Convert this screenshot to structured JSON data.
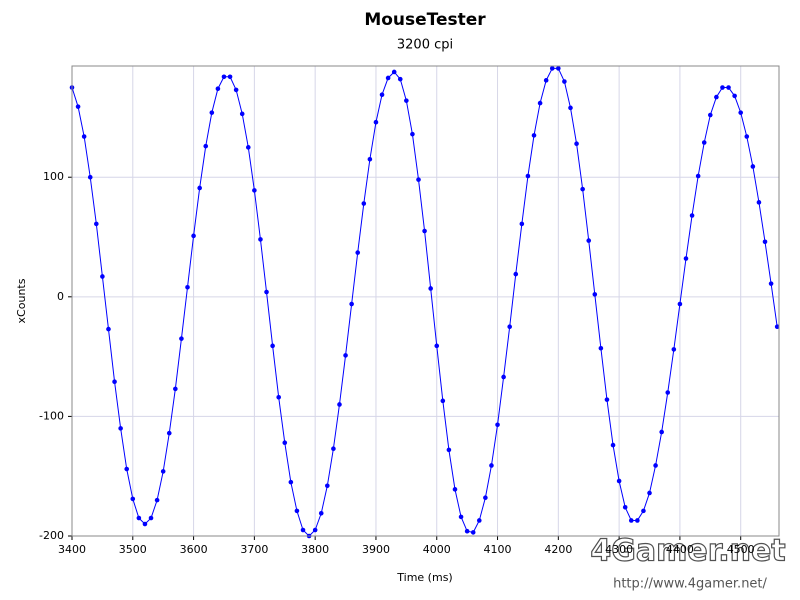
{
  "chart_data": {
    "type": "line",
    "title": "MouseTester",
    "subtitle": "3200 cpi",
    "x_label": "Time (ms)",
    "y_label": "xCounts",
    "watermark": "4Gamer.net",
    "watermark_url": "http://www.4gamer.net/",
    "xlim": [
      3400,
      4563
    ],
    "ylim": [
      -200,
      193
    ],
    "xticks": [
      3400,
      3500,
      3600,
      3700,
      3800,
      3900,
      4000,
      4100,
      4200,
      4300,
      4400,
      4500
    ],
    "yticks": [
      -200,
      -100,
      0,
      100
    ],
    "grid": true,
    "markers": true,
    "x": [
      3400,
      3410,
      3420,
      3430,
      3440,
      3450,
      3460,
      3470,
      3480,
      3490,
      3500,
      3510,
      3520,
      3530,
      3540,
      3550,
      3560,
      3570,
      3580,
      3590,
      3600,
      3610,
      3620,
      3630,
      3640,
      3650,
      3660,
      3670,
      3680,
      3690,
      3700,
      3710,
      3720,
      3730,
      3740,
      3750,
      3760,
      3770,
      3780,
      3790,
      3800,
      3810,
      3820,
      3830,
      3840,
      3850,
      3860,
      3870,
      3880,
      3890,
      3900,
      3910,
      3920,
      3930,
      3940,
      3950,
      3960,
      3970,
      3980,
      3990,
      4000,
      4010,
      4020,
      4030,
      4040,
      4050,
      4060,
      4070,
      4080,
      4090,
      4100,
      4110,
      4120,
      4130,
      4140,
      4150,
      4160,
      4170,
      4180,
      4190,
      4200,
      4210,
      4220,
      4230,
      4240,
      4250,
      4260,
      4270,
      4280,
      4290,
      4300,
      4310,
      4320,
      4330,
      4340,
      4350,
      4360,
      4370,
      4380,
      4390,
      4400,
      4410,
      4420,
      4430,
      4440,
      4450,
      4460,
      4470,
      4480,
      4490,
      4500,
      4510,
      4520,
      4530,
      4540,
      4550,
      4560
    ],
    "series": [
      {
        "name": "xCounts",
        "color": "#0000ff",
        "values": [
          175,
          159,
          134,
          100,
          61,
          17,
          -27,
          -71,
          -110,
          -144,
          -169,
          -185,
          -190,
          -185,
          -170,
          -146,
          -114,
          -77,
          -35,
          8,
          51,
          91,
          126,
          154,
          174,
          184,
          184,
          173,
          153,
          125,
          89,
          48,
          4,
          -41,
          -84,
          -122,
          -155,
          -179,
          -195,
          -200,
          -195,
          -181,
          -158,
          -127,
          -90,
          -49,
          -6,
          37,
          78,
          115,
          146,
          169,
          183,
          188,
          182,
          164,
          136,
          98,
          55,
          7,
          -41,
          -87,
          -128,
          -161,
          -184,
          -196,
          -197,
          -187,
          -168,
          -141,
          -107,
          -67,
          -25,
          19,
          61,
          101,
          135,
          162,
          181,
          191,
          191,
          180,
          158,
          128,
          90,
          47,
          2,
          -43,
          -86,
          -124,
          -154,
          -176,
          -187,
          -187,
          -179,
          -164,
          -141,
          -113,
          -80,
          -44,
          -6,
          32,
          68,
          101,
          129,
          152,
          167,
          175,
          175,
          168,
          154,
          134,
          109,
          79,
          46,
          11,
          -25
        ]
      }
    ]
  }
}
